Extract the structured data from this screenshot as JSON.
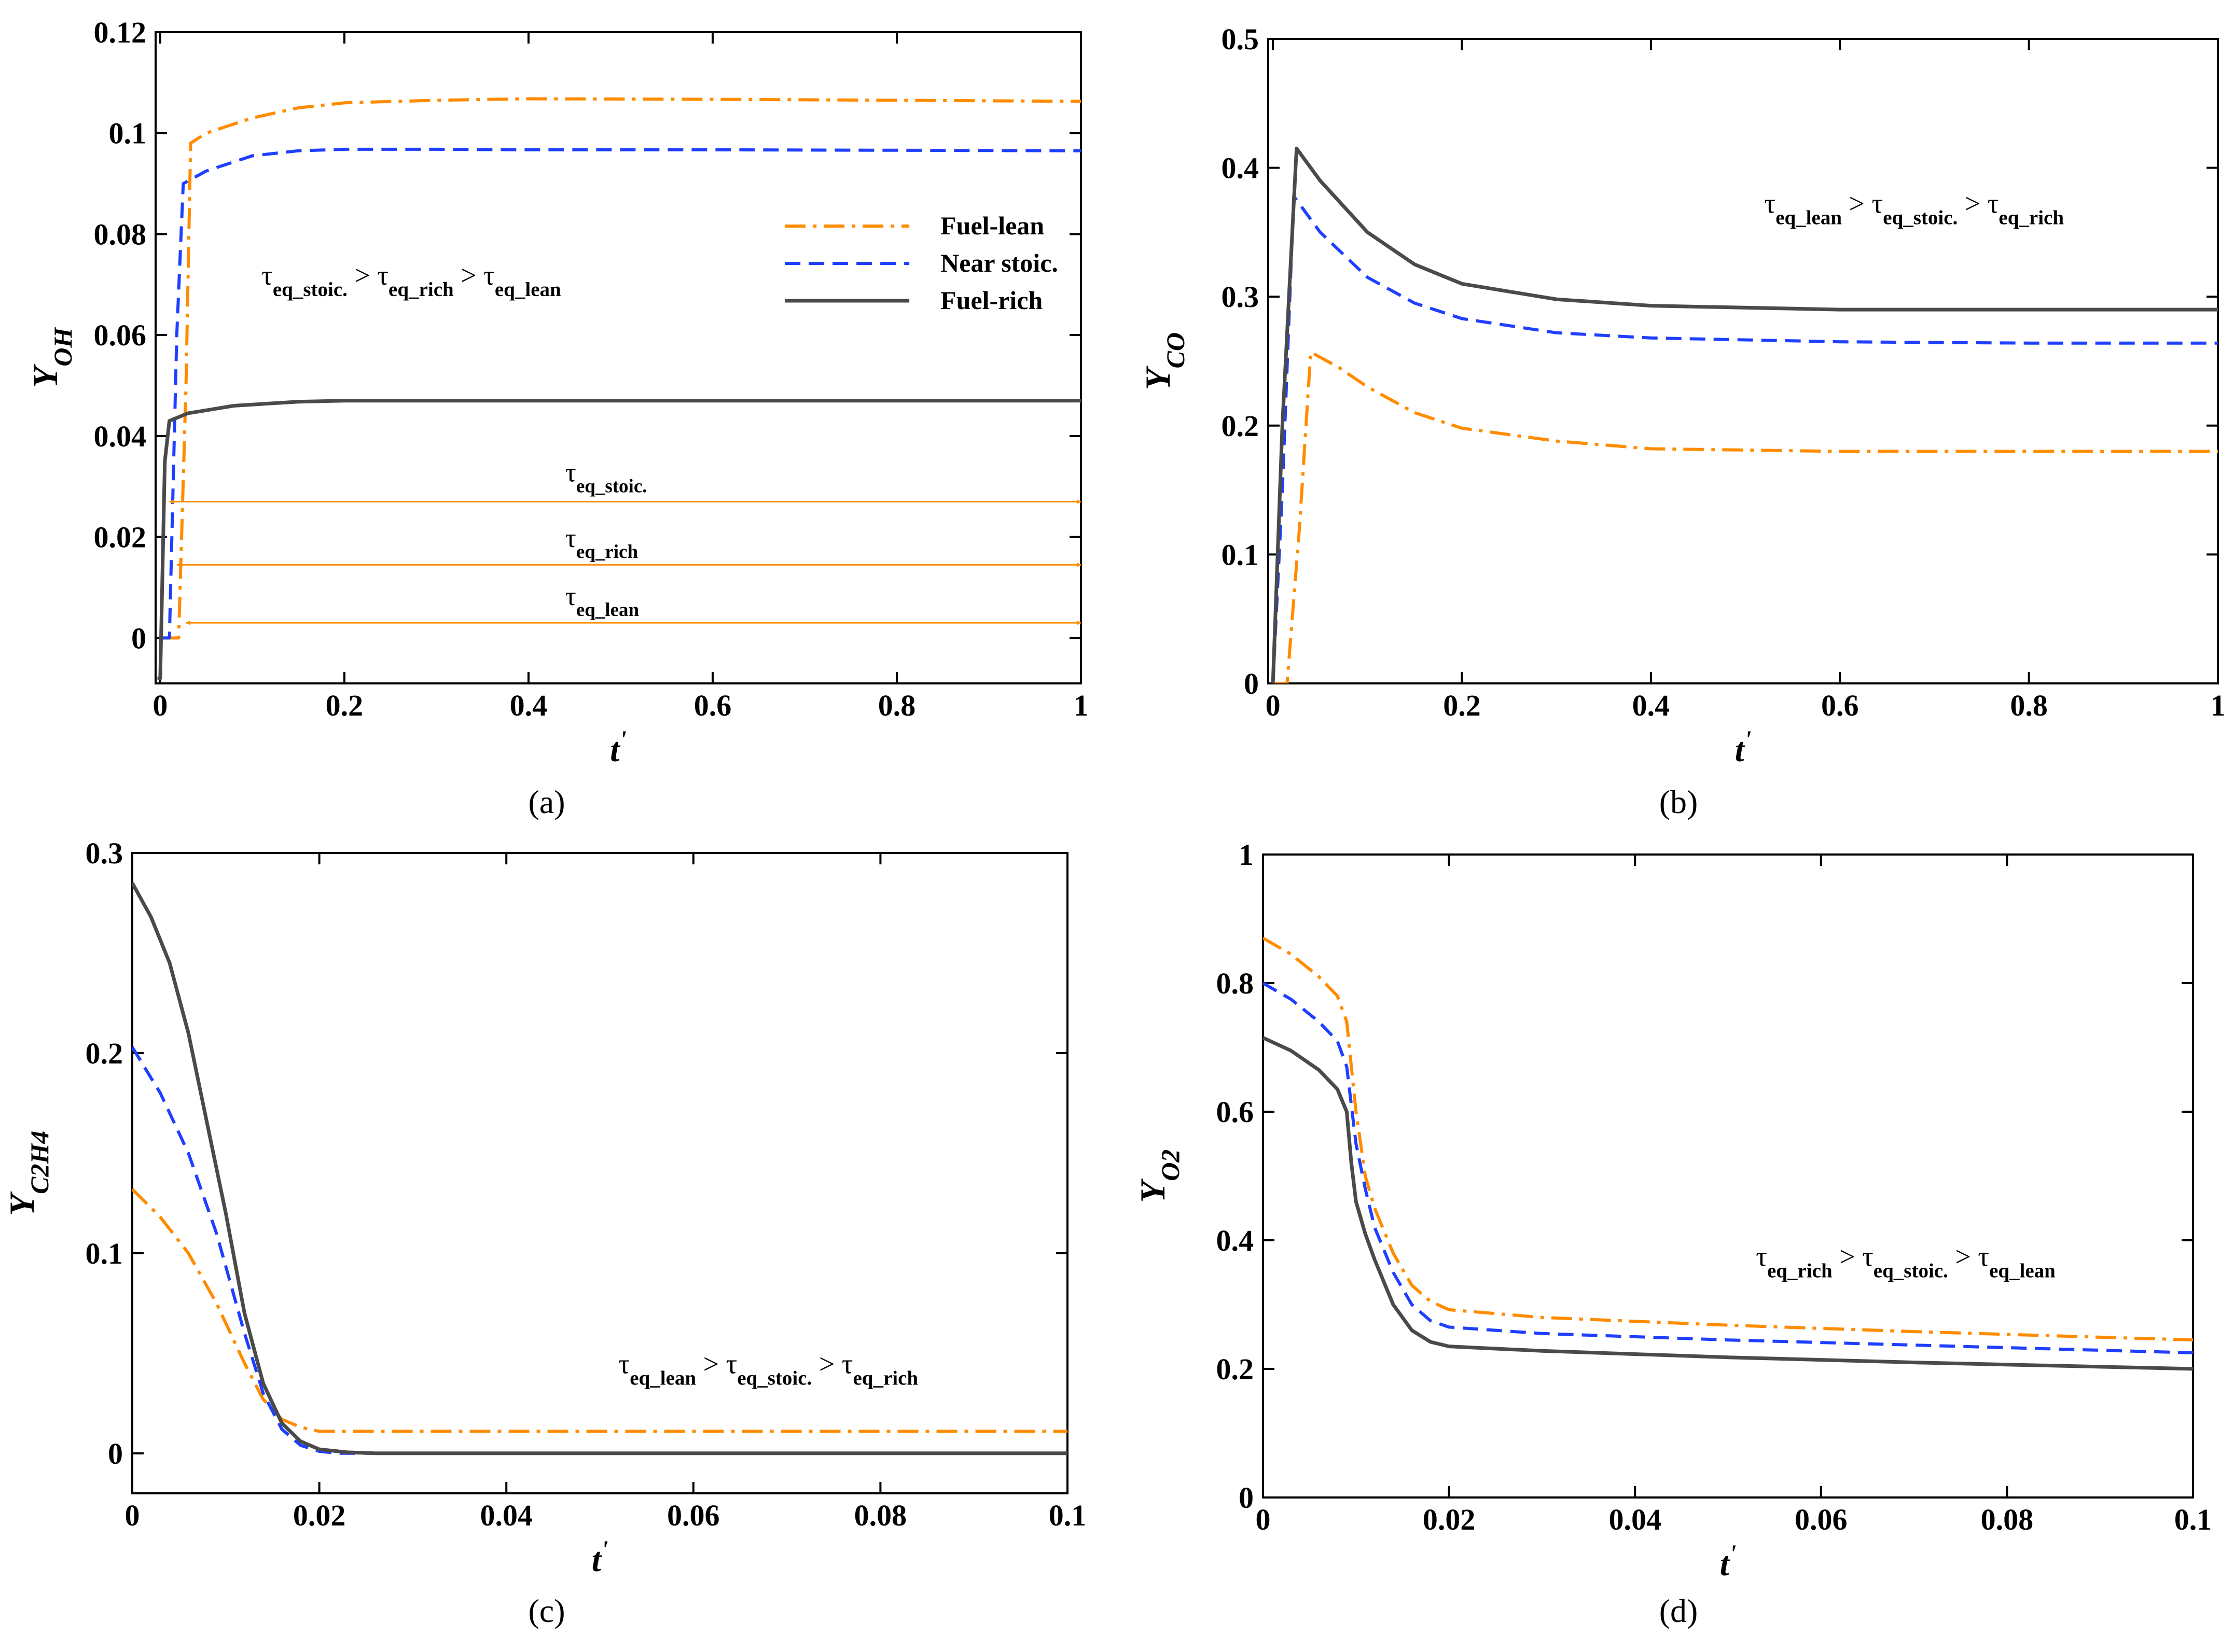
{
  "colors": {
    "lean": "#ff8c00",
    "stoic": "#1f3fff",
    "rich": "#4a4a4a",
    "arrow": "#ff8c00"
  },
  "chart_data": [
    {
      "type": "line",
      "panel": "a",
      "caption": "(a)",
      "ylabel": {
        "main": "Y",
        "sub": "OH"
      },
      "xlabel": {
        "main": "t",
        "sup": "'"
      },
      "xlim": [
        -0.005,
        1
      ],
      "ylim": [
        -0.009,
        0.12
      ],
      "xticks": [
        0,
        0.2,
        0.4,
        0.6,
        0.8,
        1
      ],
      "xtick_labels": [
        "0",
        "0.2",
        "0.4",
        "0.6",
        "0.8",
        "1"
      ],
      "yticks": [
        0,
        0.02,
        0.04,
        0.06,
        0.08,
        0.1,
        0.12
      ],
      "ytick_labels": [
        "0",
        "0.02",
        "0.04",
        "0.06",
        "0.08",
        "0.1",
        "0.12"
      ],
      "legend": {
        "position": "upper-right",
        "entries": [
          {
            "key": "lean",
            "label": "Fuel-lean"
          },
          {
            "key": "stoic",
            "label": "Near stoic."
          },
          {
            "key": "rich",
            "label": "Fuel-rich"
          }
        ]
      },
      "series": [
        {
          "name": "Fuel-lean",
          "key": "lean",
          "x": [
            0.0,
            0.02,
            0.028,
            0.033,
            0.05,
            0.1,
            0.15,
            0.2,
            0.3,
            0.4,
            0.6,
            0.8,
            1.0
          ],
          "y": [
            0.0,
            0.0,
            0.05,
            0.098,
            0.1,
            0.103,
            0.105,
            0.106,
            0.1065,
            0.1068,
            0.1067,
            0.1065,
            0.1063
          ]
        },
        {
          "name": "Near stoic.",
          "key": "stoic",
          "x": [
            0.0,
            0.01,
            0.018,
            0.025,
            0.05,
            0.1,
            0.15,
            0.2,
            0.3,
            0.4,
            0.6,
            0.8,
            1.0
          ],
          "y": [
            0.0,
            0.0,
            0.06,
            0.09,
            0.0925,
            0.0955,
            0.0965,
            0.0968,
            0.0968,
            0.0967,
            0.0967,
            0.0966,
            0.0965
          ]
        },
        {
          "name": "Fuel-rich",
          "key": "rich",
          "x": [
            -0.003,
            0.0,
            0.005,
            0.01,
            0.03,
            0.08,
            0.15,
            0.2,
            0.3,
            0.4,
            0.6,
            0.8,
            1.0
          ],
          "y": [
            -0.008,
            -0.008,
            0.035,
            0.043,
            0.0445,
            0.046,
            0.0468,
            0.047,
            0.047,
            0.047,
            0.047,
            0.047,
            0.047
          ]
        }
      ],
      "annotations": [
        {
          "parts": [
            {
              "t": "τ"
            },
            {
              "t": "eq_stoic.",
              "sub": true
            },
            {
              "t": " > τ"
            },
            {
              "t": "eq_rich",
              "sub": true
            },
            {
              "t": " > τ"
            },
            {
              "t": "eq_lean",
              "sub": true
            }
          ],
          "x": 0.11,
          "y": 0.07,
          "size": 54
        }
      ],
      "arrows": [
        {
          "label_parts": [
            {
              "t": "τ"
            },
            {
              "t": "eq_stoic.",
              "sub": true
            }
          ],
          "x_start": 0.01,
          "x_end": 1.0,
          "y": 0.027,
          "label_x": 0.44,
          "label_y": 0.031
        },
        {
          "label_parts": [
            {
              "t": "τ"
            },
            {
              "t": "eq_rich",
              "sub": true
            }
          ],
          "x_start": 0.018,
          "x_end": 1.0,
          "y": 0.0145,
          "label_x": 0.44,
          "label_y": 0.018
        },
        {
          "label_parts": [
            {
              "t": "τ"
            },
            {
              "t": "eq_lean",
              "sub": true
            }
          ],
          "x_start": 0.028,
          "x_end": 1.0,
          "y": 0.003,
          "label_x": 0.44,
          "label_y": 0.0065
        }
      ]
    },
    {
      "type": "line",
      "panel": "b",
      "caption": "(b)",
      "ylabel": {
        "main": "Y",
        "sub": "CO"
      },
      "xlabel": {
        "main": "t",
        "sup": "'"
      },
      "xlim": [
        -0.005,
        1
      ],
      "ylim": [
        0,
        0.5
      ],
      "xticks": [
        0,
        0.2,
        0.4,
        0.6,
        0.8,
        1
      ],
      "xtick_labels": [
        "0",
        "0.2",
        "0.4",
        "0.6",
        "0.8",
        "1"
      ],
      "yticks": [
        0,
        0.1,
        0.2,
        0.3,
        0.4,
        0.5
      ],
      "ytick_labels": [
        "0",
        "0.1",
        "0.2",
        "0.3",
        "0.4",
        "0.5"
      ],
      "series": [
        {
          "name": "Fuel-lean",
          "key": "lean",
          "x": [
            0.0,
            0.015,
            0.028,
            0.04,
            0.07,
            0.1,
            0.15,
            0.2,
            0.3,
            0.4,
            0.6,
            0.8,
            1.0
          ],
          "y": [
            0.0,
            0.0,
            0.12,
            0.257,
            0.245,
            0.23,
            0.21,
            0.198,
            0.188,
            0.182,
            0.18,
            0.18,
            0.18
          ]
        },
        {
          "name": "Near stoic.",
          "key": "stoic",
          "x": [
            0.0,
            0.01,
            0.022,
            0.05,
            0.1,
            0.15,
            0.2,
            0.3,
            0.4,
            0.6,
            0.8,
            1.0
          ],
          "y": [
            0.0,
            0.15,
            0.378,
            0.35,
            0.315,
            0.295,
            0.283,
            0.272,
            0.268,
            0.265,
            0.264,
            0.264
          ]
        },
        {
          "name": "Fuel-rich",
          "key": "rich",
          "x": [
            0.0,
            0.01,
            0.025,
            0.05,
            0.1,
            0.15,
            0.2,
            0.3,
            0.4,
            0.6,
            0.8,
            1.0
          ],
          "y": [
            0.0,
            0.2,
            0.415,
            0.39,
            0.35,
            0.325,
            0.31,
            0.298,
            0.293,
            0.29,
            0.29,
            0.29
          ]
        }
      ],
      "annotations": [
        {
          "parts": [
            {
              "t": "τ"
            },
            {
              "t": "eq_lean",
              "sub": true
            },
            {
              "t": " > τ"
            },
            {
              "t": "eq_stoic.",
              "sub": true
            },
            {
              "t": " > τ"
            },
            {
              "t": "eq_rich",
              "sub": true
            }
          ],
          "x": 0.52,
          "y": 0.365,
          "size": 54
        }
      ],
      "arrows": []
    },
    {
      "type": "line",
      "panel": "c",
      "caption": "(c)",
      "ylabel": {
        "main": "Y",
        "sub": "C2H4"
      },
      "xlabel": {
        "main": "t",
        "sup": "'"
      },
      "xlim": [
        0,
        0.1
      ],
      "ylim": [
        -0.02,
        0.3
      ],
      "xticks": [
        0,
        0.02,
        0.04,
        0.06,
        0.08,
        0.1
      ],
      "xtick_labels": [
        "0",
        "0.02",
        "0.04",
        "0.06",
        "0.08",
        "0.1"
      ],
      "yticks": [
        0,
        0.1,
        0.2,
        0.3
      ],
      "ytick_labels": [
        "0",
        "0.1",
        "0.2",
        "0.3"
      ],
      "series": [
        {
          "name": "Fuel-lean",
          "key": "lean",
          "x": [
            0.0,
            0.003,
            0.006,
            0.009,
            0.012,
            0.014,
            0.016,
            0.018,
            0.02,
            0.025,
            0.03,
            0.05,
            0.1
          ],
          "y": [
            0.132,
            0.118,
            0.1,
            0.075,
            0.045,
            0.027,
            0.017,
            0.013,
            0.011,
            0.011,
            0.011,
            0.011,
            0.011
          ]
        },
        {
          "name": "Near stoic.",
          "key": "stoic",
          "x": [
            0.0,
            0.003,
            0.006,
            0.009,
            0.012,
            0.014,
            0.016,
            0.018,
            0.02,
            0.022,
            0.025,
            0.03,
            0.05,
            0.1
          ],
          "y": [
            0.203,
            0.18,
            0.15,
            0.11,
            0.06,
            0.03,
            0.012,
            0.004,
            0.001,
            0.0,
            0.0,
            0.0,
            0.0,
            0.0
          ]
        },
        {
          "name": "Fuel-rich",
          "key": "rich",
          "x": [
            0.0,
            0.002,
            0.004,
            0.006,
            0.008,
            0.01,
            0.012,
            0.014,
            0.016,
            0.018,
            0.02,
            0.023,
            0.026,
            0.03,
            0.05,
            0.1
          ],
          "y": [
            0.285,
            0.268,
            0.245,
            0.21,
            0.165,
            0.12,
            0.07,
            0.035,
            0.015,
            0.006,
            0.002,
            0.0005,
            0.0,
            0.0,
            0.0,
            0.0
          ]
        }
      ],
      "annotations": [
        {
          "parts": [
            {
              "t": "τ"
            },
            {
              "t": "eq_lean",
              "sub": true
            },
            {
              "t": " > τ"
            },
            {
              "t": "eq_stoic.",
              "sub": true
            },
            {
              "t": " > τ"
            },
            {
              "t": "eq_rich",
              "sub": true
            }
          ],
          "x": 0.052,
          "y": 0.04,
          "size": 54
        }
      ],
      "arrows": []
    },
    {
      "type": "line",
      "panel": "d",
      "caption": "(d)",
      "ylabel": {
        "main": "Y",
        "sub": "O2"
      },
      "xlabel": {
        "main": "t",
        "sup": "'"
      },
      "xlim": [
        0,
        0.1
      ],
      "ylim": [
        0,
        1
      ],
      "xticks": [
        0,
        0.02,
        0.04,
        0.06,
        0.08,
        0.1
      ],
      "xtick_labels": [
        "0",
        "0.02",
        "0.04",
        "0.06",
        "0.08",
        "0.1"
      ],
      "yticks": [
        0,
        0.2,
        0.4,
        0.6,
        0.8,
        1
      ],
      "ytick_labels": [
        "0",
        "0.2",
        "0.4",
        "0.6",
        "0.8",
        "1"
      ],
      "series": [
        {
          "name": "Fuel-lean",
          "key": "lean",
          "x": [
            0.0,
            0.003,
            0.006,
            0.008,
            0.009,
            0.01,
            0.011,
            0.012,
            0.014,
            0.016,
            0.018,
            0.02,
            0.03,
            0.05,
            0.07,
            0.1
          ],
          "y": [
            0.87,
            0.845,
            0.81,
            0.78,
            0.74,
            0.6,
            0.5,
            0.45,
            0.38,
            0.33,
            0.305,
            0.292,
            0.28,
            0.268,
            0.258,
            0.245
          ]
        },
        {
          "name": "Near stoic.",
          "key": "stoic",
          "x": [
            0.0,
            0.003,
            0.006,
            0.008,
            0.009,
            0.01,
            0.011,
            0.012,
            0.014,
            0.016,
            0.018,
            0.02,
            0.03,
            0.05,
            0.07,
            0.1
          ],
          "y": [
            0.8,
            0.775,
            0.74,
            0.71,
            0.67,
            0.55,
            0.48,
            0.42,
            0.35,
            0.3,
            0.275,
            0.265,
            0.255,
            0.245,
            0.237,
            0.225
          ]
        },
        {
          "name": "Fuel-rich",
          "key": "rich",
          "x": [
            0.0,
            0.003,
            0.006,
            0.008,
            0.009,
            0.0095,
            0.01,
            0.011,
            0.012,
            0.014,
            0.016,
            0.018,
            0.02,
            0.03,
            0.05,
            0.07,
            0.1
          ],
          "y": [
            0.715,
            0.695,
            0.665,
            0.635,
            0.6,
            0.52,
            0.46,
            0.41,
            0.37,
            0.3,
            0.26,
            0.242,
            0.235,
            0.228,
            0.218,
            0.21,
            0.2
          ]
        }
      ],
      "annotations": [
        {
          "parts": [
            {
              "t": "τ"
            },
            {
              "t": "eq_rich",
              "sub": true
            },
            {
              "t": " > τ"
            },
            {
              "t": "eq_stoic.",
              "sub": true
            },
            {
              "t": " > τ"
            },
            {
              "t": "eq_lean",
              "sub": true
            }
          ],
          "x": 0.053,
          "y": 0.36,
          "size": 54
        }
      ],
      "arrows": []
    }
  ]
}
